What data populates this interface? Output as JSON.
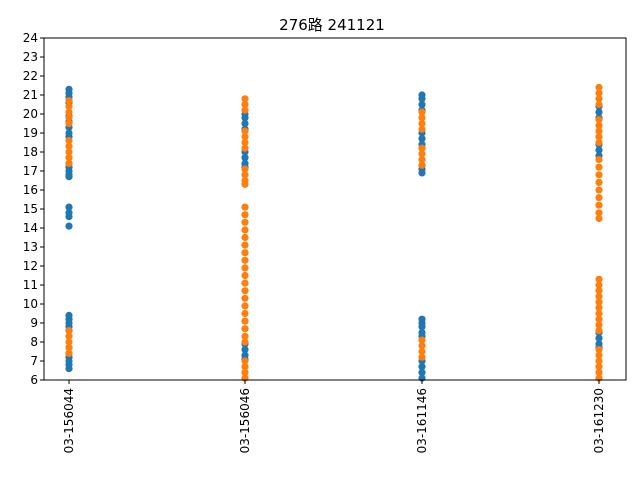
{
  "chart_data": {
    "type": "scatter",
    "title": "276路  241121",
    "xlabel": "",
    "ylabel": "",
    "categories": [
      "03-156044",
      "03-156046",
      "03-161146",
      "03-161230"
    ],
    "ylim": [
      6,
      24
    ],
    "yticks": [
      6,
      7,
      8,
      9,
      10,
      11,
      12,
      13,
      14,
      15,
      16,
      17,
      18,
      19,
      20,
      21,
      22,
      23,
      24
    ],
    "grid": false,
    "legend": "none",
    "series": [
      {
        "color": "#1f77b4",
        "points": [
          [
            "03-156044",
            21.3
          ],
          [
            "03-156044",
            21.1
          ],
          [
            "03-156044",
            20.9
          ],
          [
            "03-156044",
            20.6
          ],
          [
            "03-156044",
            19.9
          ],
          [
            "03-156044",
            19.6
          ],
          [
            "03-156044",
            19.3
          ],
          [
            "03-156044",
            19.0
          ],
          [
            "03-156044",
            18.8
          ],
          [
            "03-156044",
            17.4
          ],
          [
            "03-156044",
            17.2
          ],
          [
            "03-156044",
            17.0
          ],
          [
            "03-156044",
            16.8
          ],
          [
            "03-156044",
            16.7
          ],
          [
            "03-156044",
            15.1
          ],
          [
            "03-156044",
            14.8
          ],
          [
            "03-156044",
            14.6
          ],
          [
            "03-156044",
            14.1
          ],
          [
            "03-156044",
            9.4
          ],
          [
            "03-156044",
            9.2
          ],
          [
            "03-156044",
            9.0
          ],
          [
            "03-156044",
            8.8
          ],
          [
            "03-156044",
            8.6
          ],
          [
            "03-156044",
            7.4
          ],
          [
            "03-156044",
            7.2
          ],
          [
            "03-156044",
            7.0
          ],
          [
            "03-156044",
            6.8
          ],
          [
            "03-156044",
            6.6
          ],
          [
            "03-156046",
            20.0
          ],
          [
            "03-156046",
            19.8
          ],
          [
            "03-156046",
            19.5
          ],
          [
            "03-156046",
            19.2
          ],
          [
            "03-156046",
            18.0
          ],
          [
            "03-156046",
            17.7
          ],
          [
            "03-156046",
            17.4
          ],
          [
            "03-156046",
            17.2
          ],
          [
            "03-156046",
            7.9
          ],
          [
            "03-156046",
            7.6
          ],
          [
            "03-156046",
            7.3
          ],
          [
            "03-156046",
            7.1
          ],
          [
            "03-161146",
            21.0
          ],
          [
            "03-161146",
            20.8
          ],
          [
            "03-161146",
            20.5
          ],
          [
            "03-161146",
            20.2
          ],
          [
            "03-161146",
            19.0
          ],
          [
            "03-161146",
            18.7
          ],
          [
            "03-161146",
            18.4
          ],
          [
            "03-161146",
            18.2
          ],
          [
            "03-161146",
            17.3
          ],
          [
            "03-161146",
            17.1
          ],
          [
            "03-161146",
            16.9
          ],
          [
            "03-161146",
            9.2
          ],
          [
            "03-161146",
            9.0
          ],
          [
            "03-161146",
            8.8
          ],
          [
            "03-161146",
            8.5
          ],
          [
            "03-161146",
            8.3
          ],
          [
            "03-161146",
            7.0
          ],
          [
            "03-161146",
            6.7
          ],
          [
            "03-161146",
            6.4
          ],
          [
            "03-161146",
            6.1
          ],
          [
            "03-161230",
            20.4
          ],
          [
            "03-161230",
            20.1
          ],
          [
            "03-161230",
            19.8
          ],
          [
            "03-161230",
            18.4
          ],
          [
            "03-161230",
            18.1
          ],
          [
            "03-161230",
            17.8
          ],
          [
            "03-161230",
            8.5
          ],
          [
            "03-161230",
            8.2
          ],
          [
            "03-161230",
            7.9
          ],
          [
            "03-161230",
            7.7
          ]
        ]
      },
      {
        "color": "#ff7f0e",
        "points": [
          [
            "03-156044",
            20.7
          ],
          [
            "03-156044",
            20.4
          ],
          [
            "03-156044",
            20.1
          ],
          [
            "03-156044",
            19.8
          ],
          [
            "03-156044",
            19.5
          ],
          [
            "03-156044",
            18.6
          ],
          [
            "03-156044",
            18.3
          ],
          [
            "03-156044",
            18.0
          ],
          [
            "03-156044",
            17.7
          ],
          [
            "03-156044",
            17.4
          ],
          [
            "03-156044",
            8.6
          ],
          [
            "03-156044",
            8.3
          ],
          [
            "03-156044",
            8.0
          ],
          [
            "03-156044",
            7.7
          ],
          [
            "03-156044",
            7.4
          ],
          [
            "03-156046",
            20.8
          ],
          [
            "03-156046",
            20.5
          ],
          [
            "03-156046",
            20.2
          ],
          [
            "03-156046",
            19.1
          ],
          [
            "03-156046",
            18.8
          ],
          [
            "03-156046",
            18.5
          ],
          [
            "03-156046",
            18.2
          ],
          [
            "03-156046",
            17.1
          ],
          [
            "03-156046",
            16.8
          ],
          [
            "03-156046",
            16.5
          ],
          [
            "03-156046",
            16.3
          ],
          [
            "03-156046",
            15.1
          ],
          [
            "03-156046",
            14.7
          ],
          [
            "03-156046",
            14.3
          ],
          [
            "03-156046",
            13.9
          ],
          [
            "03-156046",
            13.5
          ],
          [
            "03-156046",
            13.1
          ],
          [
            "03-156046",
            12.7
          ],
          [
            "03-156046",
            12.3
          ],
          [
            "03-156046",
            11.9
          ],
          [
            "03-156046",
            11.5
          ],
          [
            "03-156046",
            11.1
          ],
          [
            "03-156046",
            10.7
          ],
          [
            "03-156046",
            10.3
          ],
          [
            "03-156046",
            9.9
          ],
          [
            "03-156046",
            9.5
          ],
          [
            "03-156046",
            9.1
          ],
          [
            "03-156046",
            8.7
          ],
          [
            "03-156046",
            8.3
          ],
          [
            "03-156046",
            8.0
          ],
          [
            "03-156046",
            7.0
          ],
          [
            "03-156046",
            6.7
          ],
          [
            "03-156046",
            6.4
          ],
          [
            "03-156046",
            6.1
          ],
          [
            "03-161146",
            20.1
          ],
          [
            "03-161146",
            19.8
          ],
          [
            "03-161146",
            19.5
          ],
          [
            "03-161146",
            19.2
          ],
          [
            "03-161146",
            18.2
          ],
          [
            "03-161146",
            17.9
          ],
          [
            "03-161146",
            17.6
          ],
          [
            "03-161146",
            17.3
          ],
          [
            "03-161146",
            8.1
          ],
          [
            "03-161146",
            7.8
          ],
          [
            "03-161146",
            7.5
          ],
          [
            "03-161146",
            7.2
          ],
          [
            "03-161230",
            21.4
          ],
          [
            "03-161230",
            21.1
          ],
          [
            "03-161230",
            20.8
          ],
          [
            "03-161230",
            20.5
          ],
          [
            "03-161230",
            19.7
          ],
          [
            "03-161230",
            19.4
          ],
          [
            "03-161230",
            19.1
          ],
          [
            "03-161230",
            18.8
          ],
          [
            "03-161230",
            18.5
          ],
          [
            "03-161230",
            17.6
          ],
          [
            "03-161230",
            17.2
          ],
          [
            "03-161230",
            16.8
          ],
          [
            "03-161230",
            16.4
          ],
          [
            "03-161230",
            16.0
          ],
          [
            "03-161230",
            15.6
          ],
          [
            "03-161230",
            15.2
          ],
          [
            "03-161230",
            14.8
          ],
          [
            "03-161230",
            14.5
          ],
          [
            "03-161230",
            11.3
          ],
          [
            "03-161230",
            11.0
          ],
          [
            "03-161230",
            10.7
          ],
          [
            "03-161230",
            10.4
          ],
          [
            "03-161230",
            10.1
          ],
          [
            "03-161230",
            9.8
          ],
          [
            "03-161230",
            9.5
          ],
          [
            "03-161230",
            9.2
          ],
          [
            "03-161230",
            8.9
          ],
          [
            "03-161230",
            8.6
          ],
          [
            "03-161230",
            7.6
          ],
          [
            "03-161230",
            7.3
          ],
          [
            "03-161230",
            7.0
          ],
          [
            "03-161230",
            6.7
          ],
          [
            "03-161230",
            6.4
          ],
          [
            "03-161230",
            6.1
          ]
        ]
      }
    ]
  }
}
